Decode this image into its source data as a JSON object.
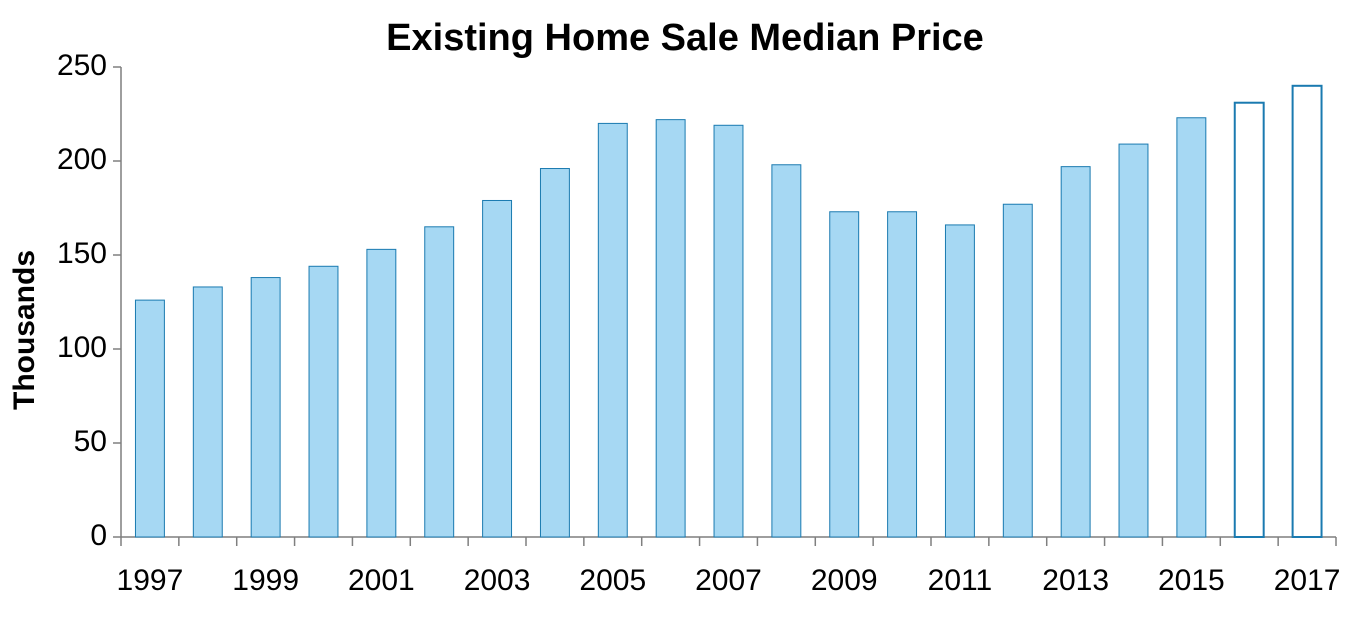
{
  "chart_data": {
    "type": "bar",
    "title": "Existing Home Sale Median Price",
    "y_label": "Thousands",
    "categories": [
      "1997",
      null,
      "1999",
      null,
      "2001",
      null,
      "2003",
      null,
      "2005",
      null,
      "2007",
      null,
      "2009",
      null,
      "2011",
      null,
      "2013",
      null,
      "2015",
      null,
      "2017"
    ],
    "values": [
      126,
      133,
      138,
      144,
      153,
      165,
      179,
      196,
      220,
      222,
      219,
      198,
      173,
      173,
      166,
      177,
      197,
      209,
      223,
      231,
      240
    ],
    "colors": [
      "#a6d8f3",
      "#a6d8f3",
      "#a6d8f3",
      "#a6d8f3",
      "#a6d8f3",
      "#a6d8f3",
      "#a6d8f3",
      "#a6d8f3",
      "#a6d8f3",
      "#a6d8f3",
      "#a6d8f3",
      "#a6d8f3",
      "#a6d8f3",
      "#a6d8f3",
      "#a6d8f3",
      "#a6d8f3",
      "#a6d8f3",
      "#a6d8f3",
      "#a6d8f3",
      "#ffffff",
      "#ffffff"
    ],
    "edgecolor": "#1a7ab0",
    "ylim": [
      0,
      250
    ],
    "yticks": [
      0,
      50,
      100,
      150,
      200,
      250
    ],
    "grid": false
  }
}
